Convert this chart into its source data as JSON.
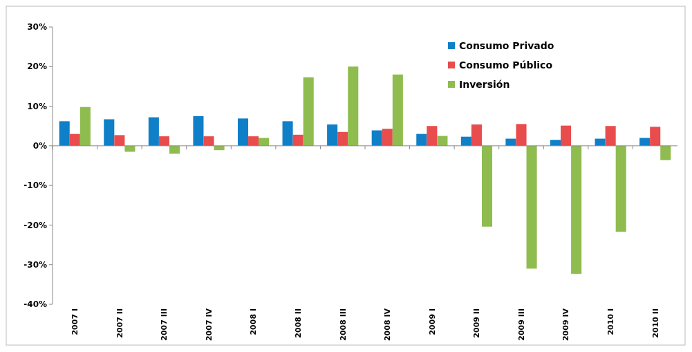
{
  "chart_data": {
    "type": "bar",
    "categories": [
      "2007 I",
      "2007 II",
      "2007 III",
      "2007 IV",
      "2008 I",
      "2008 II",
      "2008 III",
      "2008 IV",
      "2009 I",
      "2009 II",
      "2009 III",
      "2009 IV",
      "2010 I",
      "2010 II"
    ],
    "series": [
      {
        "name": "Consumo Privado",
        "color": "#0f7fc8",
        "values": [
          6.2,
          6.7,
          7.2,
          7.5,
          6.9,
          6.2,
          5.4,
          3.9,
          3.0,
          2.3,
          1.8,
          1.5,
          1.8,
          2.0
        ]
      },
      {
        "name": "Consumo Público",
        "color": "#e84c4c",
        "values": [
          3.0,
          2.7,
          2.4,
          2.4,
          2.4,
          2.8,
          3.5,
          4.3,
          5.0,
          5.4,
          5.5,
          5.1,
          5.0,
          4.8
        ]
      },
      {
        "name": "Inversión",
        "color": "#8fbc4f",
        "values": [
          9.8,
          -1.5,
          -2.0,
          -1.1,
          2.0,
          17.3,
          20.0,
          18.0,
          2.5,
          -20.4,
          -31.0,
          -32.3,
          -21.7,
          -3.6
        ]
      }
    ],
    "ylim": [
      -40,
      30
    ],
    "yticks": [
      {
        "value": -40,
        "label": "-40%"
      },
      {
        "value": -30,
        "label": "-30%"
      },
      {
        "value": -20,
        "label": "-20%"
      },
      {
        "value": -10,
        "label": "-10%"
      },
      {
        "value": 0,
        "label": "0%"
      },
      {
        "value": 10,
        "label": "10%"
      },
      {
        "value": 20,
        "label": "20%"
      },
      {
        "value": 30,
        "label": "30%"
      }
    ],
    "legend": "top right"
  }
}
